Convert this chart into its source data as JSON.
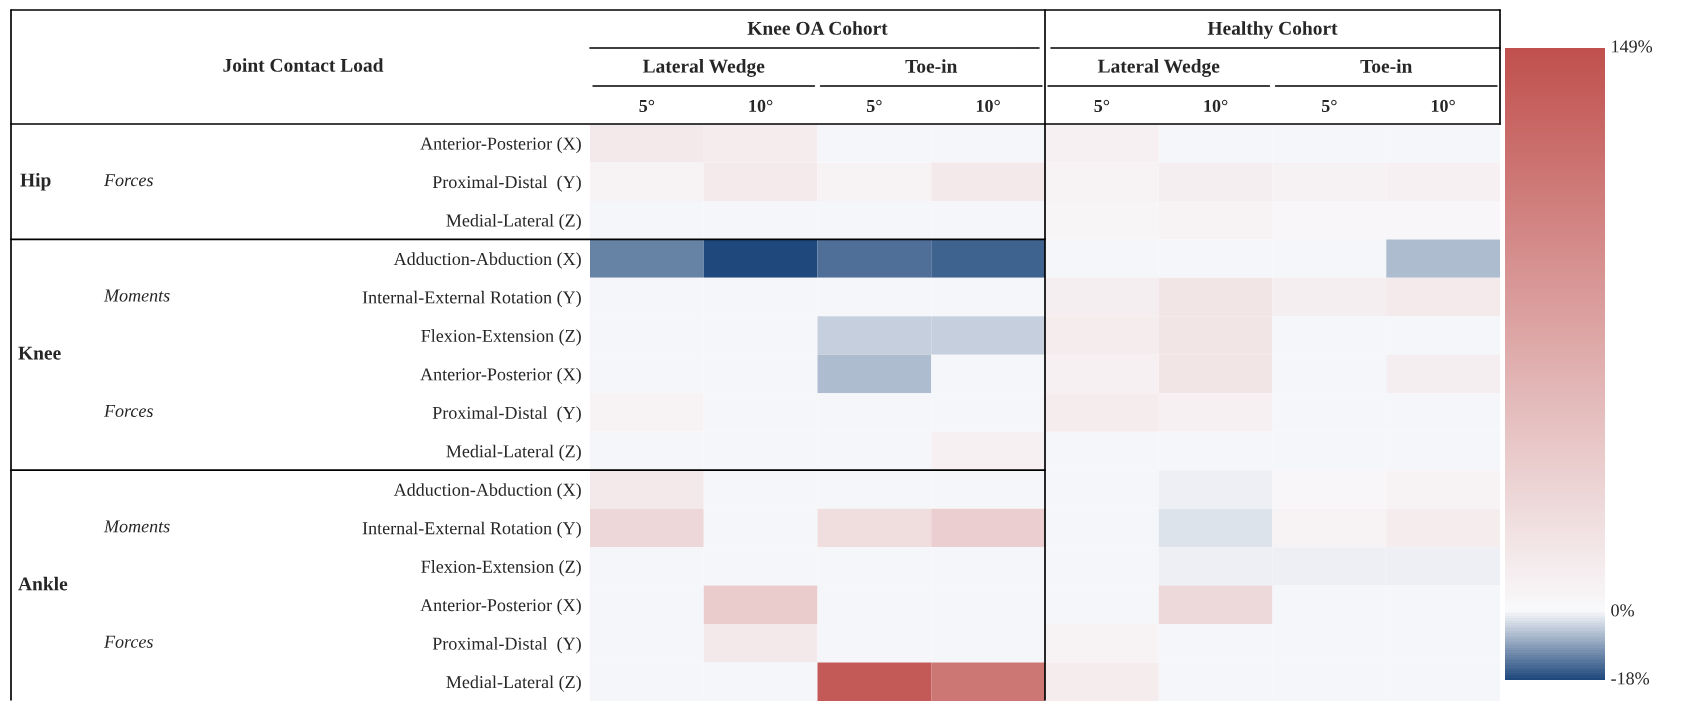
{
  "chart_data": {
    "type": "heatmap",
    "categories": [
      "5°",
      "10°",
      "5°",
      "10°",
      "5°",
      "10°",
      "5°",
      "10°"
    ],
    "y_categories": [
      "Anterior-Posterior (X)",
      "Proximal-Distal  (Y)",
      "Medial-Lateral (Z)",
      "Adduction-Abduction (X)",
      "Internal-External Rotation (Y)",
      "Flexion-Extension (Z)",
      "Anterior-Posterior (X)",
      "Proximal-Distal  (Y)",
      "Medial-Lateral (Z)",
      "Adduction-Abduction (X)",
      "Internal-External Rotation (Y)",
      "Flexion-Extension (Z)",
      "Anterior-Posterior (X)",
      "Proximal-Distal  (Y)",
      "Medial-Lateral (Z)"
    ],
    "cells": [
      [
        15,
        12,
        0,
        0,
        8,
        0,
        0,
        0
      ],
      [
        5,
        14,
        5,
        15,
        5,
        10,
        7,
        8
      ],
      [
        0,
        0,
        0,
        0,
        4,
        5,
        3,
        3
      ],
      [
        -12,
        -18,
        -14,
        -15,
        0,
        0,
        0,
        -6
      ],
      [
        0,
        0,
        0,
        0,
        10,
        18,
        10,
        14
      ],
      [
        0,
        0,
        -4,
        -4,
        12,
        18,
        0,
        0
      ],
      [
        0,
        0,
        -6,
        0,
        8,
        18,
        0,
        10
      ],
      [
        6,
        0,
        0,
        0,
        12,
        8,
        0,
        0
      ],
      [
        0,
        0,
        0,
        8,
        0,
        0,
        0,
        0
      ],
      [
        15,
        0,
        0,
        0,
        0,
        -1,
        3,
        5
      ],
      [
        30,
        0,
        25,
        38,
        0,
        -2,
        5,
        12
      ],
      [
        0,
        0,
        0,
        0,
        0,
        -1,
        -1,
        -1
      ],
      [
        0,
        40,
        0,
        0,
        0,
        28,
        0,
        0
      ],
      [
        0,
        15,
        0,
        0,
        6,
        0,
        0,
        0
      ],
      [
        0,
        0,
        140,
        115,
        12,
        0,
        0,
        0
      ]
    ],
    "clim": [
      -18,
      149
    ],
    "cticks": [
      {
        "value": 149,
        "label": "149%"
      },
      {
        "value": 0,
        "label": "0%"
      },
      {
        "value": -18,
        "label": "-18%"
      }
    ],
    "annotations": [
      "Joint Contact Load",
      "Knee OA Cohort",
      "Healthy Cohort",
      "Lateral Wedge",
      "Toe-in",
      "Lateral Wedge",
      "Toe-in",
      "Hip",
      "Forces",
      "Knee",
      "Moments",
      "Forces",
      "Ankle",
      "Moments",
      "Forces"
    ]
  }
}
